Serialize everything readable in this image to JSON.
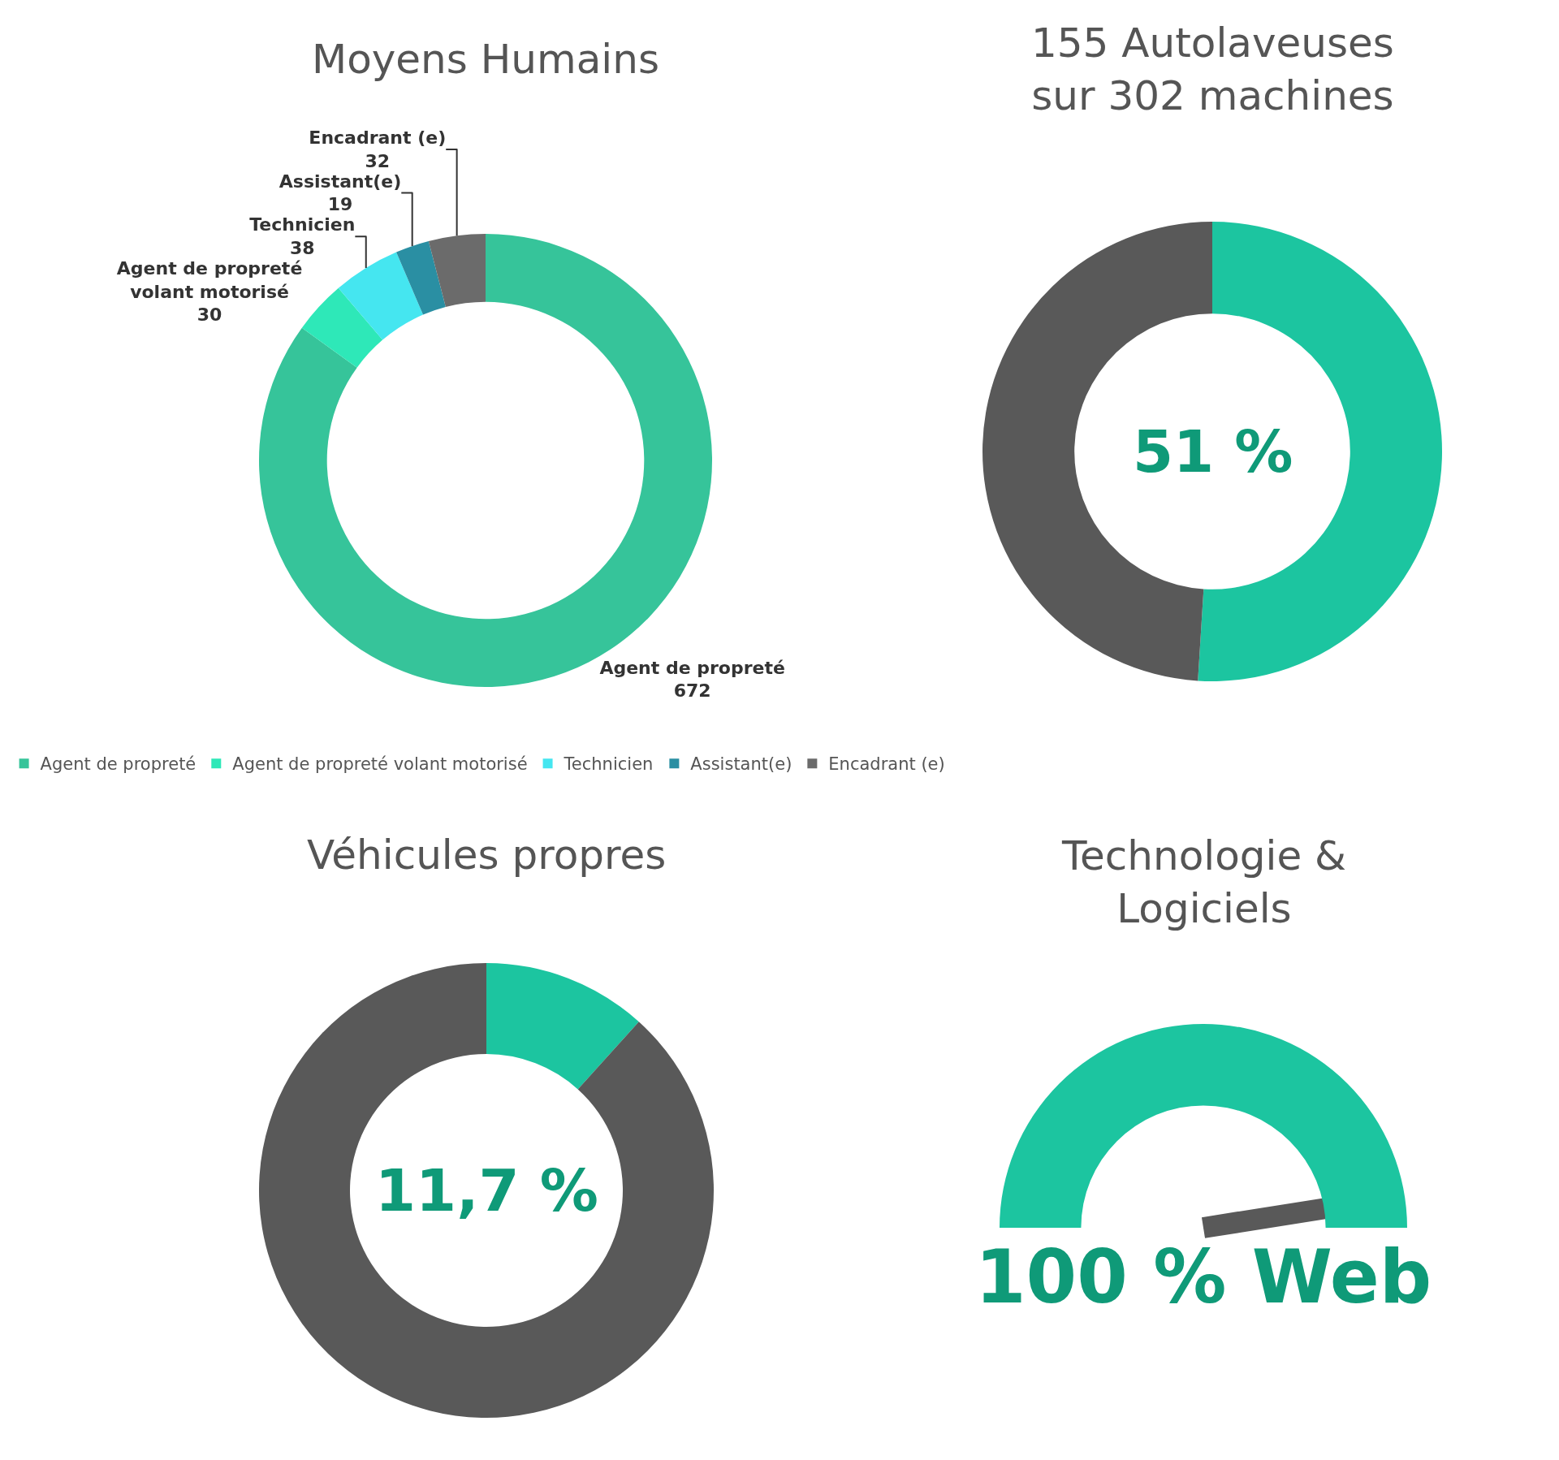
{
  "chart_data": [
    {
      "type": "donut",
      "title": "Moyens Humains",
      "categories": [
        "Agent de propreté",
        "Agent de propreté volant motorisé",
        "Technicien",
        "Assistant(e)",
        "Encadrant (e)"
      ],
      "values": [
        672,
        30,
        38,
        19,
        32
      ],
      "colors": [
        "#36c49a",
        "#2ee8b8",
        "#45e6f0",
        "#2a8fa3",
        "#6b6b6b"
      ],
      "data_labels": true,
      "legend": "bottom"
    },
    {
      "type": "donut",
      "title": "155 Autolaveuses sur 302 machines",
      "categories": [
        null,
        null
      ],
      "values": [
        51,
        49
      ],
      "colors": [
        "#1cc5a0",
        "#595959"
      ],
      "annotations": [
        "51 %"
      ]
    },
    {
      "type": "donut",
      "title": "Véhicules propres",
      "categories": [
        null,
        null
      ],
      "values": [
        11.7,
        88.3
      ],
      "colors": [
        "#1cc5a0",
        "#595959"
      ],
      "annotations": [
        "11,7 %"
      ]
    },
    {
      "type": "pie",
      "title": "Technologie & Logiciels",
      "categories": [
        null
      ],
      "values": [
        100
      ],
      "colors": [
        "#1cc5a0"
      ],
      "needle": null,
      "annotations": [
        "100 % Web"
      ]
    }
  ]
}
